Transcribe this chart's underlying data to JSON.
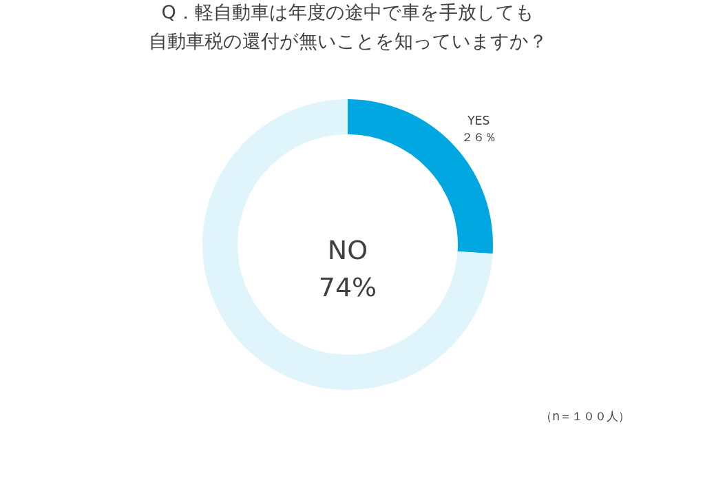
{
  "chart_data": {
    "type": "donut",
    "title": [
      "Q．軽自動車は年度の途中で車を手放しても",
      "自動車税の還付が無いことを知っていますか？"
    ],
    "categories": [
      "YES",
      "NO"
    ],
    "values": [
      26,
      74
    ],
    "colors": [
      "#00a7e1",
      "#e0f4fb"
    ],
    "value_labels": [
      "２６％",
      "74%"
    ],
    "annotations": [
      "（n＝１００人）"
    ],
    "legend": false
  }
}
